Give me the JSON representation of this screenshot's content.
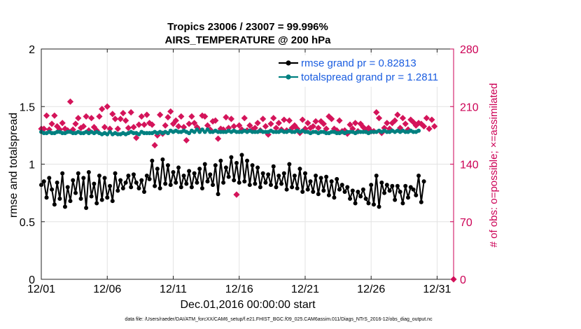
{
  "chart_data": {
    "type": "line",
    "title": "Tropics 23006 / 23007 = 99.996%",
    "subtitle": "AIRS_TEMPERATURE @ 200 hPa",
    "xlabel": "Dec.01,2016 00:00:00 start",
    "ylabel": "rmse and totalspread",
    "ylabel_right": "# of obs: o=possible; ×=assimilated",
    "footnote": "data file: /Users/raeder/DAI/ATM_forcXX/CAM6_setup/f.e21.FHIST_BGC.f09_025.CAM6assim.011/Diags_NTrS_2016-12/obs_diag_output.nc",
    "xlim": [
      0,
      31.25
    ],
    "ylim": [
      0,
      2
    ],
    "ylim_right": [
      0,
      280
    ],
    "x_ticks": [
      0,
      5,
      10,
      15,
      20,
      25,
      30
    ],
    "x_tick_labels": [
      "12/01",
      "12/06",
      "12/11",
      "12/16",
      "12/21",
      "12/26",
      "12/31"
    ],
    "y_ticks": [
      0,
      0.5,
      1,
      1.5,
      2
    ],
    "y_tick_labels": [
      "0",
      "0.5",
      "1",
      "1.5",
      "2"
    ],
    "y_right_ticks": [
      0,
      70,
      140,
      210,
      280
    ],
    "y_right_tick_labels": [
      "0",
      "70",
      "140",
      "210",
      "280"
    ],
    "grid": true,
    "legend_position": "top-right",
    "colors": {
      "rmse": "#000000",
      "spread": "#008080",
      "obs": "#d4145a",
      "legend_text": "#1a5de0",
      "right_axis": "#cc0055"
    },
    "series": [
      {
        "name": "rmse grand pr = 0.82813",
        "axis": "left",
        "values": [
          0.82,
          0.85,
          0.71,
          0.88,
          0.78,
          0.65,
          0.84,
          0.7,
          0.92,
          0.63,
          0.8,
          0.68,
          0.86,
          0.75,
          0.92,
          0.7,
          0.88,
          0.62,
          0.93,
          0.72,
          0.83,
          0.66,
          0.9,
          0.69,
          0.88,
          0.71,
          0.81,
          0.68,
          0.92,
          0.77,
          0.86,
          0.79,
          0.84,
          0.9,
          0.8,
          0.91,
          0.84,
          0.79,
          0.86,
          0.76,
          0.9,
          0.87,
          1.03,
          0.81,
          0.96,
          0.79,
          1.04,
          0.83,
          0.99,
          0.82,
          0.93,
          0.84,
          0.97,
          0.8,
          0.9,
          0.83,
          0.94,
          0.8,
          0.92,
          0.84,
          0.96,
          0.79,
          1.0,
          0.85,
          0.91,
          0.82,
          0.99,
          0.74,
          1.03,
          0.84,
          0.97,
          0.89,
          1.06,
          0.86,
          1.01,
          0.84,
          1.08,
          0.85,
          1.03,
          0.82,
          0.99,
          0.83,
          0.97,
          0.8,
          0.92,
          0.84,
          0.91,
          0.82,
          0.98,
          0.8,
          0.9,
          0.83,
          0.92,
          0.78,
          1.0,
          0.8,
          0.9,
          0.79,
          0.96,
          0.76,
          0.92,
          0.78,
          0.85,
          0.76,
          0.9,
          0.74,
          0.88,
          0.77,
          0.89,
          0.73,
          0.85,
          0.71,
          0.87,
          0.78,
          0.82,
          0.76,
          0.8,
          0.7,
          0.77,
          0.66,
          0.76,
          0.72,
          0.78,
          0.7,
          0.66,
          0.82,
          0.65,
          0.9,
          0.63,
          0.84,
          0.75,
          0.82,
          0.77,
          0.81,
          0.69,
          0.81,
          0.76,
          0.66,
          0.81,
          0.71,
          0.8,
          0.78,
          0.73,
          0.9,
          0.67,
          0.85
        ]
      },
      {
        "name": "totalspread grand pr = 1.2811",
        "axis": "left",
        "values": [
          1.28,
          1.27,
          1.27,
          1.28,
          1.27,
          1.27,
          1.28,
          1.28,
          1.27,
          1.27,
          1.28,
          1.28,
          1.27,
          1.27,
          1.28,
          1.27,
          1.27,
          1.28,
          1.27,
          1.28,
          1.27,
          1.28,
          1.27,
          1.26,
          1.27,
          1.26,
          1.28,
          1.26,
          1.27,
          1.26,
          1.26,
          1.27,
          1.26,
          1.27,
          1.28,
          1.27,
          1.27,
          1.26,
          1.28,
          1.27,
          1.27,
          1.27,
          1.27,
          1.28,
          1.27,
          1.28,
          1.27,
          1.28,
          1.27,
          1.29,
          1.28,
          1.29,
          1.28,
          1.28,
          1.29,
          1.28,
          1.27,
          1.29,
          1.28,
          1.3,
          1.28,
          1.3,
          1.28,
          1.3,
          1.28,
          1.28,
          1.29,
          1.28,
          1.28,
          1.28,
          1.28,
          1.29,
          1.28,
          1.29,
          1.28,
          1.28,
          1.28,
          1.29,
          1.28,
          1.29,
          1.28,
          1.28,
          1.28,
          1.29,
          1.28,
          1.28,
          1.28,
          1.29,
          1.28,
          1.28,
          1.28,
          1.29,
          1.28,
          1.28,
          1.29,
          1.28,
          1.28,
          1.29,
          1.28,
          1.29,
          1.28,
          1.28,
          1.27,
          1.28,
          1.28,
          1.27,
          1.28,
          1.28,
          1.27,
          1.27,
          1.28,
          1.28,
          1.27,
          1.27,
          1.28,
          1.27,
          1.28,
          1.28,
          1.28,
          1.27,
          1.28,
          1.28,
          1.28,
          1.28,
          1.27,
          1.28,
          1.28,
          1.28,
          1.29,
          1.28,
          1.29,
          1.28,
          1.28,
          1.29,
          1.28,
          1.29,
          1.28,
          1.29,
          1.28,
          1.28,
          1.29,
          1.28,
          1.28,
          1.29
        ]
      },
      {
        "name": "observations",
        "axis": "right",
        "marker": "diamond",
        "values": [
          183,
          183,
          199,
          182,
          189,
          199,
          186,
          182,
          190,
          183,
          181,
          216,
          182,
          189,
          196,
          184,
          186,
          198,
          181,
          196,
          185,
          181,
          198,
          207,
          185,
          210,
          183,
          201,
          195,
          183,
          195,
          202,
          193,
          184,
          203,
          185,
          172,
          188,
          198,
          188,
          200,
          190,
          188,
          163,
          175,
          200,
          177,
          187,
          197,
          204,
          189,
          193,
          186,
          198,
          185,
          169,
          189,
          198,
          190,
          185,
          181,
          199,
          198,
          187,
          182,
          192,
          193,
          171,
          183,
          182,
          197,
          184,
          195,
          186,
          103,
          187,
          182,
          196,
          181,
          187,
          182,
          184,
          190,
          181,
          195,
          186,
          176,
          189,
          196,
          184,
          190,
          182,
          194,
          181,
          193,
          184,
          187,
          183,
          178,
          194,
          183,
          190,
          184,
          186,
          192,
          184,
          192,
          189,
          183,
          198,
          195,
          183,
          181,
          193,
          180,
          181,
          177,
          188,
          183,
          190,
          180,
          189,
          185,
          181,
          184,
          180,
          180,
          203,
          196,
          178,
          184,
          190,
          183,
          190,
          193,
          200,
          184,
          196,
          189,
          182,
          194,
          191,
          187,
          190,
          189,
          186,
          196,
          183,
          194,
          186
        ]
      }
    ]
  }
}
